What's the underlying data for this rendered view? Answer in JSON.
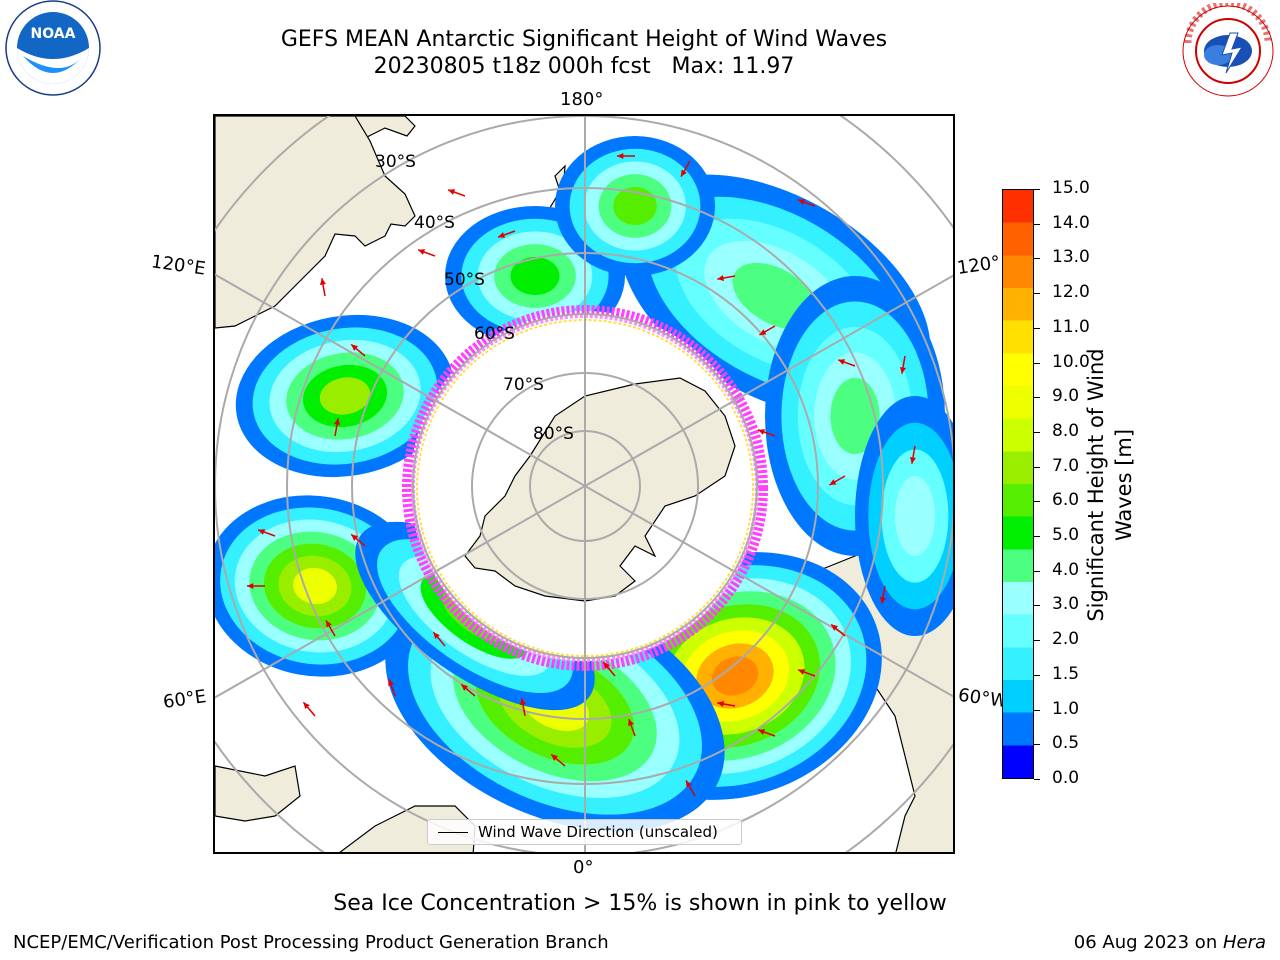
{
  "header": {
    "title": "GEFS MEAN Antarctic Significant Height of Wind Waves",
    "subtitle": "20230805 t18z 000h fcst   Max: 11.97"
  },
  "logos": {
    "noaa_text": "NOAA",
    "noaa_ring_text": "NATIONAL OCEANIC AND ATMOSPHERIC ADMINISTRATION · U.S. DEPARTMENT OF COMMERCE",
    "nws_ring_text": "NATIONAL WEATHER SERVICE"
  },
  "map": {
    "longitude_labels": {
      "top": "180°",
      "bottom": "0°",
      "left_upper": "120°E",
      "left_lower": "60°E",
      "right_upper": "120°",
      "right_lower": "60°W"
    },
    "latitude_labels": [
      "30°S",
      "40°S",
      "50°S",
      "60°S",
      "70°S",
      "80°S"
    ],
    "legend_label": "Wind Wave Direction (unscaled)",
    "projection": "south polar stereographic"
  },
  "colorbar": {
    "label_line1": "Significant Height of Wind",
    "label_line2": "Waves [m]",
    "ticks": [
      "15.0",
      "14.0",
      "13.0",
      "12.0",
      "11.0",
      "10.0",
      "9.0",
      "8.0",
      "7.0",
      "6.0",
      "5.0",
      "4.0",
      "3.0",
      "2.0",
      "1.5",
      "1.0",
      "0.5",
      "0.0"
    ],
    "colors": [
      "#0000ff",
      "#0077ff",
      "#00d0ff",
      "#35f0ff",
      "#66ffff",
      "#99ffff",
      "#4dff80",
      "#00ee00",
      "#55ee00",
      "#99ee00",
      "#ccff00",
      "#eeff00",
      "#ffff00",
      "#ffe000",
      "#ffb000",
      "#ff8800",
      "#ff6000",
      "#ff3000",
      "#ff0000"
    ],
    "ice_colors": [
      "#ff40ff",
      "#ff8aff",
      "#ffe040"
    ]
  },
  "caption": "Sea Ice Concentration > 15% is shown in pink to yellow",
  "footer": {
    "left": "NCEP/EMC/Verification Post Processing Product Generation Branch",
    "right_prefix": "06 Aug 2023 on ",
    "right_italic": "Hera"
  }
}
